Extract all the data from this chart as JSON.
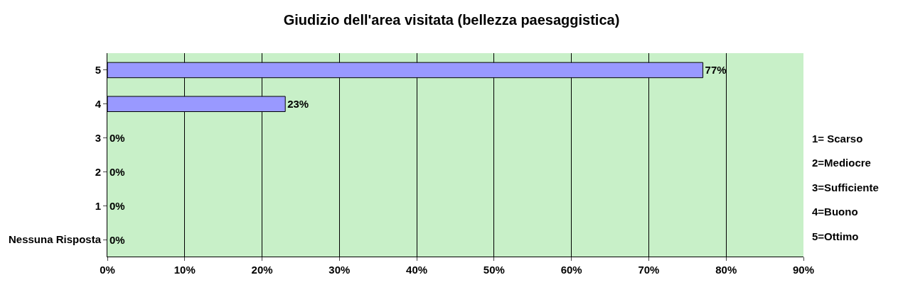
{
  "chart_data": {
    "type": "bar",
    "orientation": "horizontal",
    "title": "Giudizio dell'area visitata (bellezza paesaggistica)",
    "categories": [
      "5",
      "4",
      "3",
      "2",
      "1",
      "Nessuna Risposta"
    ],
    "values": [
      77,
      23,
      0,
      0,
      0,
      0
    ],
    "value_labels": [
      "77%",
      "23%",
      "0%",
      "0%",
      "0%",
      "0%"
    ],
    "color": "#9999ff",
    "xlim": [
      0,
      90
    ],
    "xticks": [
      {
        "value": 0,
        "label": "0%"
      },
      {
        "value": 10,
        "label": "10%"
      },
      {
        "value": 20,
        "label": "20%"
      },
      {
        "value": 30,
        "label": "30%"
      },
      {
        "value": 40,
        "label": "40%"
      },
      {
        "value": 50,
        "label": "50%"
      },
      {
        "value": 60,
        "label": "60%"
      },
      {
        "value": 70,
        "label": "70%"
      },
      {
        "value": 80,
        "label": "80%"
      },
      {
        "value": 90,
        "label": "90%"
      }
    ],
    "grid": "x",
    "legend": false,
    "annotations": [
      "1= Scarso",
      "2=Mediocre",
      "3=Sufficiente",
      "4=Buono",
      "5=Ottimo"
    ]
  }
}
